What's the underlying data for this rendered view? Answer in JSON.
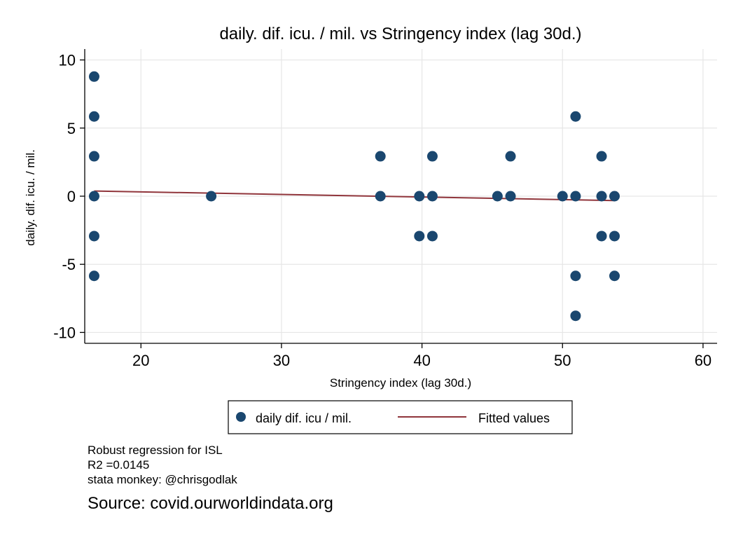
{
  "chart_data": {
    "type": "scatter",
    "title": "daily. dif. icu. / mil. vs Stringency index (lag 30d.)",
    "xlabel": "Stringency index (lag 30d.)",
    "ylabel": "daily. dif. icu. / mil.",
    "xlim": [
      16,
      61
    ],
    "ylim": [
      -10.8,
      10.8
    ],
    "xticks": [
      20,
      30,
      40,
      50,
      60
    ],
    "yticks": [
      10,
      5,
      0,
      -5,
      -10
    ],
    "grid": true,
    "legend_position": "bottom",
    "series": [
      {
        "name": "daily dif. icu / mil.",
        "kind": "scatter",
        "color": "#1a476f",
        "points": [
          [
            16.67,
            8.78
          ],
          [
            16.67,
            5.85
          ],
          [
            16.67,
            2.93
          ],
          [
            16.67,
            0
          ],
          [
            16.67,
            -2.93
          ],
          [
            16.67,
            -5.85
          ],
          [
            25,
            0
          ],
          [
            37.04,
            2.93
          ],
          [
            37.04,
            0
          ],
          [
            39.81,
            0
          ],
          [
            39.81,
            -2.93
          ],
          [
            40.74,
            2.93
          ],
          [
            40.74,
            0
          ],
          [
            40.74,
            -2.93
          ],
          [
            45.37,
            0
          ],
          [
            46.3,
            2.93
          ],
          [
            46.3,
            0
          ],
          [
            50,
            0
          ],
          [
            50.93,
            5.85
          ],
          [
            50.93,
            0
          ],
          [
            50.93,
            -5.85
          ],
          [
            50.93,
            -8.78
          ],
          [
            52.78,
            2.93
          ],
          [
            52.78,
            0
          ],
          [
            52.78,
            -2.93
          ],
          [
            53.7,
            0
          ],
          [
            53.7,
            -2.93
          ],
          [
            53.7,
            -5.85
          ]
        ]
      },
      {
        "name": "Fitted values",
        "kind": "line",
        "color": "#90353b",
        "points": [
          [
            16.67,
            0.38
          ],
          [
            53.7,
            -0.32
          ]
        ]
      }
    ]
  },
  "notes": {
    "line1": "Robust regression for ISL",
    "line2": "R2 =0.0145",
    "line3": "stata monkey: @chrisgodlak"
  },
  "source": "Source: covid.ourworldindata.org"
}
